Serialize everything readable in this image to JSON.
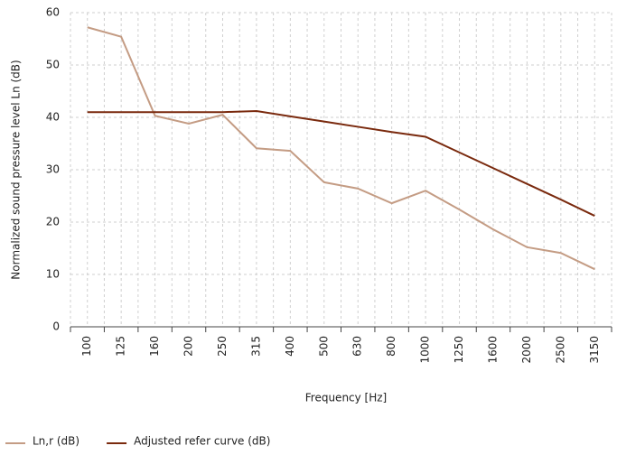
{
  "chart_data": {
    "type": "line",
    "x_label": "Frequency [Hz]",
    "y_label": "Normalized sound pressure level Ln (dB)",
    "categories": [
      "100",
      "125",
      "160",
      "200",
      "250",
      "315",
      "400",
      "500",
      "630",
      "800",
      "1000",
      "1250",
      "1600",
      "2000",
      "2500",
      "3150"
    ],
    "series": [
      {
        "name": "Ln,r (dB)",
        "color": "#c49c84",
        "values": [
          57.2,
          55.4,
          40.3,
          38.8,
          40.5,
          34.1,
          33.6,
          27.6,
          26.4,
          23.6,
          26.0,
          22.4,
          18.6,
          15.2,
          14.1,
          11.0
        ]
      },
      {
        "name": "Adjusted refer curve (dB)",
        "color": "#7a2a0e",
        "values": [
          41,
          41,
          41,
          41,
          41,
          41.2,
          40.2,
          39.2,
          38.2,
          37.2,
          36.3,
          33.3,
          30.3,
          27.3,
          24.3,
          21.2
        ]
      }
    ],
    "ylim": [
      0,
      60
    ],
    "yticks": [
      0,
      10,
      20,
      30,
      40,
      50,
      60
    ],
    "grid": true
  }
}
